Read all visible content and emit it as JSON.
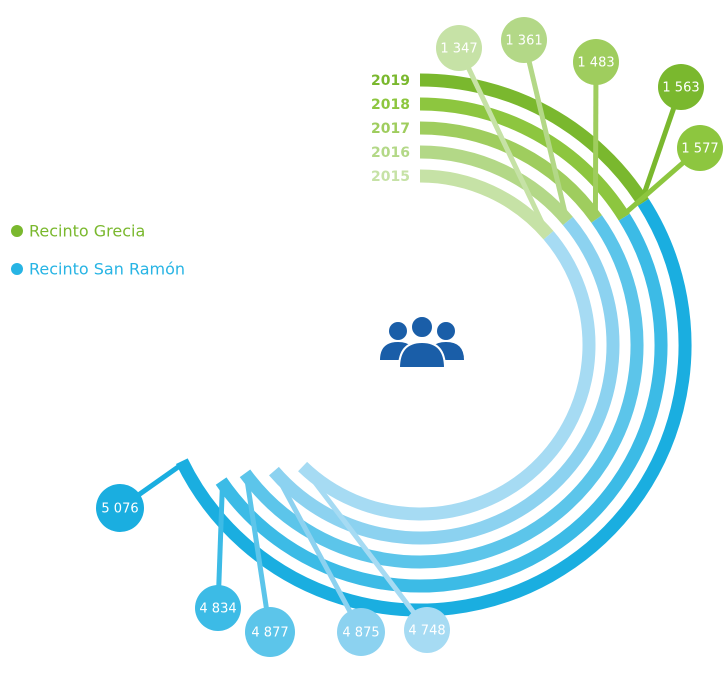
{
  "chart_data": {
    "type": "radial_bar",
    "categories": [
      "2019",
      "2018",
      "2017",
      "2016",
      "2015"
    ],
    "series": [
      {
        "name": "Recinto Grecia",
        "color": "#7ab82e",
        "colors": [
          "#7ab82e",
          "#8dc63f",
          "#9fcd5e",
          "#b3d887",
          "#c6e2a6"
        ],
        "values": [
          1563,
          1577,
          1483,
          1361,
          1347
        ],
        "value_labels": [
          "1 563",
          "1 577",
          "1 483",
          "1 361",
          "1 347"
        ]
      },
      {
        "name": "Recinto San Ramón",
        "color": "#27b4e4",
        "colors": [
          "#1aaee0",
          "#3cbbe6",
          "#5cc5ea",
          "#8cd2f0",
          "#a6dbf3"
        ],
        "values": [
          5076,
          4834,
          4877,
          4875,
          4748
        ],
        "value_labels": [
          "5 076",
          "4 834",
          "4 877",
          "4 875",
          "4 748"
        ]
      }
    ]
  }
}
